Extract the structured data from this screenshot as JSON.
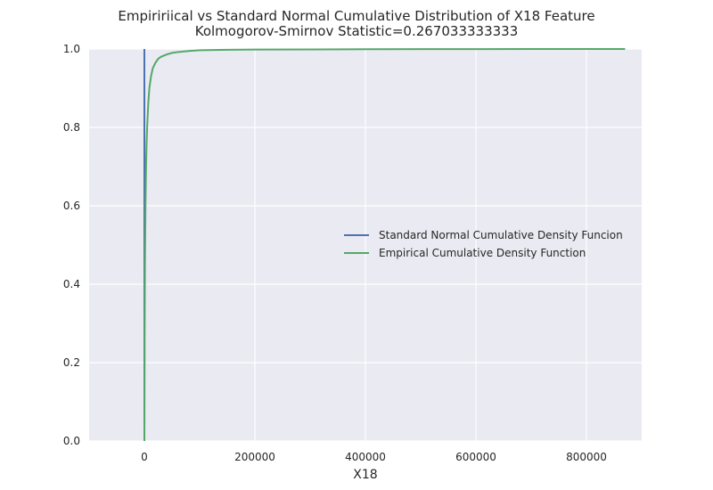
{
  "chart_data": {
    "type": "line",
    "title": "Empiririical vs Standard Normal Cumulative Distribution of X18 Feature",
    "subtitle": "Kolmogorov-Smirnov Statistic=0.267033333333",
    "xlabel": "X18",
    "ylabel": "",
    "xlim": [
      -100000,
      900000
    ],
    "ylim": [
      0.0,
      1.0
    ],
    "x_ticks": [
      0,
      200000,
      400000,
      600000,
      800000
    ],
    "x_tick_labels": [
      "0",
      "200000",
      "400000",
      "600000",
      "800000"
    ],
    "y_ticks": [
      0.0,
      0.2,
      0.4,
      0.6,
      0.8,
      1.0
    ],
    "y_tick_labels": [
      "0.0",
      "0.2",
      "0.4",
      "0.6",
      "0.8",
      "1.0"
    ],
    "grid": true,
    "legend_position": "center-right",
    "series": [
      {
        "name": "Standard Normal Cumulative Density Funcion",
        "color": "#4c72b0",
        "x": [
          0,
          0
        ],
        "y": [
          0.0,
          1.0
        ]
      },
      {
        "name": "Empirical Cumulative Density Function",
        "color": "#55a868",
        "x": [
          0,
          500,
          1000,
          2000,
          3000,
          4000,
          5000,
          7000,
          9000,
          12000,
          15000,
          20000,
          25000,
          30000,
          40000,
          50000,
          60000,
          80000,
          100000,
          150000,
          200000,
          300000,
          400000,
          500000,
          600000,
          700000,
          800000,
          870000
        ],
        "y": [
          0.0,
          0.27,
          0.45,
          0.6,
          0.7,
          0.76,
          0.8,
          0.86,
          0.9,
          0.93,
          0.95,
          0.965,
          0.975,
          0.98,
          0.986,
          0.99,
          0.992,
          0.995,
          0.997,
          0.998,
          0.9985,
          0.999,
          0.9995,
          0.9997,
          0.9998,
          0.9999,
          0.99995,
          1.0
        ]
      }
    ]
  }
}
